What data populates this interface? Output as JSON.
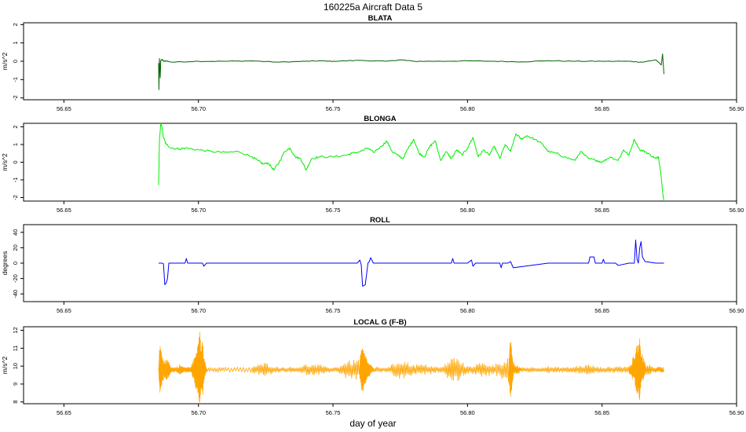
{
  "figure": {
    "title": "160225a   Aircraft Data 5",
    "xlabel": "day of year"
  },
  "chart_data": [
    {
      "type": "line",
      "title": "BLATA",
      "ylabel": "m/s^2",
      "xlim": [
        56.635,
        56.9
      ],
      "ylim": [
        -2.1,
        2.1
      ],
      "xticks": [
        "56.65",
        "56.70",
        "56.75",
        "56.80",
        "56.85",
        "56.90"
      ],
      "yticks": [
        "-2",
        "-1",
        "0",
        "1",
        "2"
      ],
      "color": "#006400",
      "series": [
        {
          "x": [
            56.6852,
            56.6853,
            56.6855,
            56.6858,
            56.686,
            56.6865,
            56.687,
            56.688,
            56.69,
            56.7,
            56.71,
            56.72,
            56.73,
            56.74,
            56.745,
            56.75,
            56.76,
            56.77,
            56.775,
            56.78,
            56.79,
            56.8,
            56.81,
            56.82,
            56.83,
            56.84,
            56.85,
            56.86,
            56.865,
            56.87,
            56.872,
            56.8725,
            56.873
          ],
          "y": [
            -0.1,
            -1.55,
            0.15,
            -0.9,
            0.05,
            0.1,
            0.0,
            0.02,
            -0.05,
            0.0,
            0.0,
            0.02,
            -0.05,
            0.0,
            0.02,
            0.0,
            0.05,
            0.0,
            0.08,
            0.0,
            0.0,
            0.02,
            0.0,
            -0.03,
            0.03,
            0.0,
            0.0,
            0.0,
            -0.05,
            0.08,
            -0.2,
            0.4,
            -0.7
          ]
        }
      ]
    },
    {
      "type": "line",
      "title": "BLONGA",
      "ylabel": "m/s^2",
      "xlim": [
        56.635,
        56.9
      ],
      "ylim": [
        -2.2,
        2.2
      ],
      "xticks": [
        "56.65",
        "56.70",
        "56.75",
        "56.80",
        "56.85",
        "56.90"
      ],
      "yticks": [
        "-2",
        "-1",
        "0",
        "1",
        "2"
      ],
      "color": "#00ee00",
      "series": [
        {
          "x": [
            56.6852,
            56.6855,
            56.686,
            56.6865,
            56.687,
            56.688,
            56.69,
            56.693,
            56.695,
            56.7,
            56.705,
            56.71,
            56.715,
            56.72,
            56.722,
            56.724,
            56.726,
            56.728,
            56.73,
            56.732,
            56.734,
            56.736,
            56.738,
            56.74,
            56.742,
            56.745,
            56.75,
            56.755,
            56.757,
            56.76,
            56.763,
            56.765,
            56.768,
            56.77,
            56.772,
            56.774,
            56.776,
            56.778,
            56.78,
            56.782,
            56.784,
            56.786,
            56.788,
            56.79,
            56.792,
            56.794,
            56.796,
            56.798,
            56.8,
            56.802,
            56.804,
            56.806,
            56.808,
            56.81,
            56.812,
            56.814,
            56.816,
            56.818,
            56.82,
            56.822,
            56.825,
            56.828,
            56.83,
            56.833,
            56.836,
            56.84,
            56.842,
            56.845,
            56.848,
            56.85,
            56.853,
            56.856,
            56.858,
            56.86,
            56.862,
            56.864,
            56.866,
            56.868,
            56.87,
            56.871,
            56.872,
            56.8725,
            56.873
          ],
          "y": [
            -1.3,
            1.2,
            2.2,
            1.9,
            1.4,
            1.0,
            0.8,
            0.75,
            0.8,
            0.7,
            0.6,
            0.55,
            0.6,
            0.3,
            0.1,
            -0.1,
            -0.05,
            -0.45,
            0.0,
            0.6,
            0.8,
            0.3,
            0.2,
            -0.45,
            0.2,
            0.3,
            0.3,
            0.4,
            0.5,
            0.6,
            0.8,
            0.55,
            0.9,
            1.2,
            0.6,
            0.4,
            0.2,
            0.8,
            1.3,
            0.5,
            0.3,
            0.9,
            1.2,
            0.1,
            0.6,
            0.2,
            0.7,
            0.4,
            0.8,
            1.4,
            0.3,
            0.7,
            0.4,
            0.9,
            0.2,
            1.0,
            0.6,
            1.6,
            1.3,
            1.5,
            1.3,
            1.0,
            0.6,
            0.5,
            0.3,
            0.1,
            0.6,
            0.2,
            0.1,
            0.0,
            0.3,
            0.1,
            0.7,
            0.4,
            1.3,
            0.7,
            0.6,
            0.4,
            0.2,
            0.3,
            -0.8,
            -1.7,
            -2.2
          ]
        }
      ]
    },
    {
      "type": "line",
      "title": "ROLL",
      "ylabel": "degrees",
      "xlim": [
        56.635,
        56.9
      ],
      "ylim": [
        -50,
        50
      ],
      "xticks": [
        "56.65",
        "56.70",
        "56.75",
        "56.80",
        "56.85",
        "56.90"
      ],
      "yticks": [
        "-40",
        "-20",
        "0",
        "20",
        "40"
      ],
      "color": "#0000ff",
      "series": [
        {
          "x": [
            56.6852,
            56.6865,
            56.687,
            56.6875,
            56.688,
            56.6885,
            56.689,
            56.69,
            56.695,
            56.6955,
            56.696,
            56.7,
            56.7015,
            56.702,
            56.703,
            56.71,
            56.72,
            56.73,
            56.74,
            56.75,
            56.759,
            56.76,
            56.7605,
            56.761,
            56.762,
            56.763,
            56.7635,
            56.764,
            56.765,
            56.77,
            56.78,
            56.794,
            56.7945,
            56.795,
            56.8,
            56.8015,
            56.802,
            56.803,
            56.81,
            56.812,
            56.8125,
            56.813,
            56.815,
            56.816,
            56.817,
            56.83,
            56.84,
            56.845,
            56.8455,
            56.847,
            56.8475,
            56.85,
            56.8505,
            56.851,
            56.855,
            56.856,
            56.86,
            56.862,
            56.8625,
            56.863,
            56.8635,
            56.864,
            56.8645,
            56.865,
            56.866,
            56.87,
            56.873
          ],
          "y": [
            0,
            0,
            -1,
            -28,
            -26,
            -20,
            0,
            0,
            0,
            6,
            0,
            0,
            0,
            -4,
            0,
            0,
            0,
            0,
            0,
            0,
            0,
            4,
            -2,
            -30,
            -28,
            0,
            2,
            7,
            0,
            0,
            0,
            0,
            6,
            0,
            0,
            4,
            -4,
            0,
            0,
            0,
            -6,
            0,
            0,
            2,
            -6,
            0,
            0,
            0,
            8,
            8,
            0,
            0,
            5,
            0,
            0,
            -3,
            0,
            0,
            30,
            5,
            0,
            20,
            28,
            8,
            2,
            0,
            0
          ]
        }
      ]
    },
    {
      "type": "line",
      "title": "LOCAL G (F-B)",
      "ylabel": "m/s^2",
      "xlim": [
        56.635,
        56.9
      ],
      "ylim": [
        7.9,
        12.2
      ],
      "xticks": [
        "56.65",
        "56.70",
        "56.75",
        "56.80",
        "56.85",
        "56.90"
      ],
      "yticks": [
        "8",
        "9",
        "10",
        "11",
        "12"
      ],
      "color": "#ffa500",
      "baseline": 9.8,
      "series": [
        {
          "x": [
            56.6852,
            56.6856,
            56.686,
            56.6865,
            56.687,
            56.688,
            56.6885,
            56.689,
            56.6895,
            56.69,
            56.693,
            56.695,
            56.697,
            56.6985,
            56.699,
            56.6995,
            56.7,
            56.7005,
            56.701,
            56.7015,
            56.702,
            56.703,
            56.71,
            56.72,
            56.725,
            56.73,
            56.735,
            56.74,
            56.745,
            56.75,
            56.755,
            56.76,
            56.7605,
            56.761,
            56.7615,
            56.762,
            56.7625,
            56.763,
            56.7635,
            56.765,
            56.77,
            56.775,
            56.78,
            56.785,
            56.79,
            56.795,
            56.8,
            56.805,
            56.81,
            56.8155,
            56.816,
            56.8165,
            56.817,
            56.82,
            56.825,
            56.83,
            56.835,
            56.84,
            56.845,
            56.85,
            56.855,
            56.86,
            56.8625,
            56.863,
            56.8635,
            56.864,
            56.8645,
            56.865,
            56.866,
            56.87,
            56.873
          ],
          "y": [
            9.8,
            11.2,
            8.6,
            10.5,
            9.2,
            10.4,
            9.3,
            10.2,
            9.6,
            9.8,
            10.1,
            9.7,
            9.9,
            10.5,
            8.7,
            10.9,
            8.2,
            12.1,
            8.9,
            11.5,
            9.1,
            9.9,
            9.8,
            9.6,
            10.2,
            9.7,
            9.9,
            9.5,
            10.1,
            9.8,
            10.3,
            9.2,
            10.9,
            8.4,
            10.7,
            8.9,
            10.4,
            9.4,
            10.2,
            9.7,
            9.9,
            10.4,
            9.5,
            10.1,
            9.7,
            10.6,
            9.6,
            10.2,
            9.5,
            10.6,
            7.95,
            10.8,
            9.4,
            9.9,
            9.7,
            10.0,
            9.8,
            9.6,
            10.1,
            9.7,
            10.0,
            9.6,
            10.8,
            8.3,
            11.0,
            7.95,
            10.6,
            8.9,
            10.2,
            9.7,
            9.8
          ]
        }
      ]
    }
  ]
}
